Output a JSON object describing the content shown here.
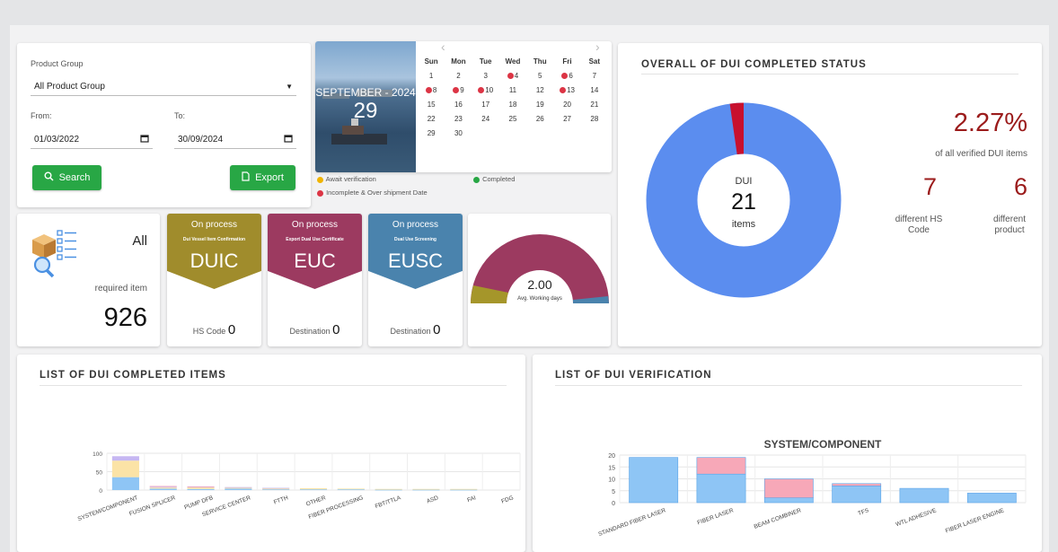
{
  "filters": {
    "product_group_label": "Product Group",
    "product_group_value": "All Product Group",
    "from_label": "From:",
    "from_value": "01/03/2022",
    "to_label": "To:",
    "to_value": "30/09/2024",
    "search_label": "Search",
    "export_label": "Export"
  },
  "calendar": {
    "month_label": "SEPTEMBER - 2024",
    "day": "29",
    "weekdays": [
      "Sun",
      "Mon",
      "Tue",
      "Wed",
      "Thu",
      "Fri",
      "Sat"
    ],
    "weeks": [
      [
        {
          "d": "1"
        },
        {
          "d": "2"
        },
        {
          "d": "3"
        },
        {
          "d": "4",
          "dot": true
        },
        {
          "d": "5"
        },
        {
          "d": "6",
          "dot": true
        },
        {
          "d": "7"
        }
      ],
      [
        {
          "d": "8",
          "dot": true
        },
        {
          "d": "9",
          "dot": true
        },
        {
          "d": "10",
          "dot": true
        },
        {
          "d": "11"
        },
        {
          "d": "12"
        },
        {
          "d": "13",
          "dot": true
        },
        {
          "d": "14"
        }
      ],
      [
        {
          "d": "15"
        },
        {
          "d": "16"
        },
        {
          "d": "17"
        },
        {
          "d": "18"
        },
        {
          "d": "19"
        },
        {
          "d": "20"
        },
        {
          "d": "21"
        }
      ],
      [
        {
          "d": "22"
        },
        {
          "d": "23"
        },
        {
          "d": "24"
        },
        {
          "d": "25"
        },
        {
          "d": "26"
        },
        {
          "d": "27"
        },
        {
          "d": "28"
        }
      ],
      [
        {
          "d": "29"
        },
        {
          "d": "30"
        },
        {
          "d": ""
        },
        {
          "d": ""
        },
        {
          "d": ""
        },
        {
          "d": ""
        },
        {
          "d": ""
        }
      ]
    ],
    "legend_await": "Await verification",
    "legend_completed": "Completed",
    "legend_incomplete": "Incomplete & Over shipment Date",
    "colors": {
      "await": "#f0b400",
      "completed": "#28a745",
      "incomplete": "#dc3545"
    }
  },
  "required": {
    "all_label": "All",
    "caption": "required item",
    "value": "926"
  },
  "process_cards": [
    {
      "status": "On process",
      "subtitle": "Dui Vessel Item Confirmation",
      "code": "DUIC",
      "foot_label": "HS Code",
      "foot_value": "0",
      "color": "#a08c2c"
    },
    {
      "status": "On process",
      "subtitle": "Export Dual Use Certificate",
      "code": "EUC",
      "foot_label": "Destination",
      "foot_value": "0",
      "color": "#9c3a60"
    },
    {
      "status": "On process",
      "subtitle": "Dual Use Screening",
      "code": "EUSC",
      "foot_label": "Destination",
      "foot_value": "0",
      "color": "#4a83ad"
    }
  ],
  "gauge": {
    "value": "2.00",
    "label": "Avg. Working days"
  },
  "overall": {
    "title": "OVERALL OF DUI COMPLETED STATUS",
    "donut_label_top": "DUI",
    "donut_value": "21",
    "donut_label_bottom": "items",
    "completed_fraction": 0.0227,
    "percent": "2.27%",
    "percent_caption": "of all verified DUI items",
    "hs_value": "7",
    "hs_caption_1": "different HS",
    "hs_caption_2": "Code",
    "product_value": "6",
    "product_caption_1": "different",
    "product_caption_2": "product",
    "colors": {
      "main": "#5b8def",
      "completed": "#c8102e"
    }
  },
  "completed_list": {
    "title": "LIST OF DUI COMPLETED ITEMS",
    "chart_data": {
      "type": "bar",
      "stacked": true,
      "categories": [
        "SYSTEM/COMPONENT",
        "FUSION SPLICER",
        "PUMP DFB",
        "SERVICE CENTER",
        "FTTH",
        "OTHER",
        "FIBER PROCESSING",
        "FBT/TTLA",
        "ASD",
        "FAI",
        "FDG"
      ],
      "ylim": [
        0,
        100
      ],
      "yticks": [
        0,
        50,
        100
      ],
      "series": [
        {
          "color": "#8ec5f5",
          "values": [
            35,
            4,
            3,
            4,
            2,
            2,
            2,
            1,
            1,
            1,
            0
          ]
        },
        {
          "color": "#fbe3a6",
          "values": [
            45,
            3,
            5,
            3,
            3,
            3,
            2,
            2,
            2,
            2,
            0
          ]
        },
        {
          "color": "#c6b7f2",
          "values": [
            12,
            2,
            1,
            1,
            1,
            0,
            0,
            0,
            0,
            0,
            0
          ]
        },
        {
          "color": "#f7a8b8",
          "values": [
            0,
            2,
            1,
            0,
            0,
            0,
            0,
            0,
            0,
            0,
            0
          ]
        }
      ]
    }
  },
  "verification_list": {
    "title": "LIST OF DUI VERIFICATION",
    "chart_data": {
      "type": "bar",
      "stacked": true,
      "title": "SYSTEM/COMPONENT",
      "categories": [
        "STANDARD FIBER LASER",
        "FIBER LASER",
        "BEAM COMBINER",
        "TFS",
        "WTL ADHESIVE",
        "FIBER LASER ENGINE"
      ],
      "ylim": [
        0,
        20
      ],
      "yticks": [
        0,
        5,
        10,
        15,
        20
      ],
      "series": [
        {
          "color": "#8ec5f5",
          "values": [
            19,
            12,
            2,
            7,
            6,
            4
          ]
        },
        {
          "color": "#f7a8b8",
          "values": [
            0,
            7,
            8,
            1,
            0,
            0
          ]
        }
      ]
    }
  }
}
